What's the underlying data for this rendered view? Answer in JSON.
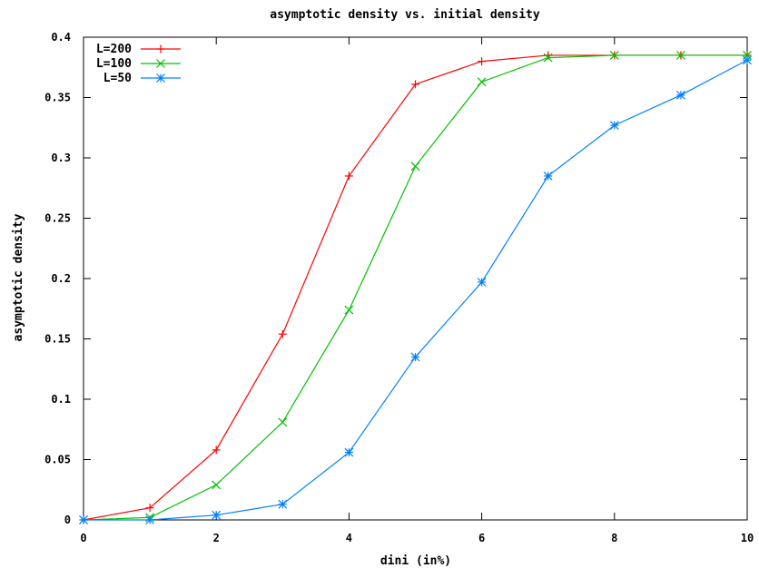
{
  "chart_data": {
    "type": "line",
    "title": "asymptotic density vs. initial density",
    "xlabel": "dini (in%)",
    "ylabel": "asymptotic density",
    "xlim": [
      0,
      10
    ],
    "ylim": [
      0,
      0.4
    ],
    "x_ticks": [
      {
        "value": 0,
        "label": "0"
      },
      {
        "value": 2,
        "label": "2"
      },
      {
        "value": 4,
        "label": "4"
      },
      {
        "value": 6,
        "label": "6"
      },
      {
        "value": 8,
        "label": "8"
      },
      {
        "value": 10,
        "label": "10"
      }
    ],
    "y_ticks": [
      {
        "value": 0,
        "label": "0"
      },
      {
        "value": 0.05,
        "label": "0.05"
      },
      {
        "value": 0.1,
        "label": "0.1"
      },
      {
        "value": 0.15,
        "label": "0.15"
      },
      {
        "value": 0.2,
        "label": "0.2"
      },
      {
        "value": 0.25,
        "label": "0.25"
      },
      {
        "value": 0.3,
        "label": "0.3"
      },
      {
        "value": 0.35,
        "label": "0.35"
      },
      {
        "value": 0.4,
        "label": "0.4"
      }
    ],
    "grid": false,
    "legend_position": "top-left",
    "x": [
      0,
      1,
      2,
      3,
      4,
      5,
      6,
      7,
      8,
      9,
      10
    ],
    "series": [
      {
        "name": "L=200",
        "color": "#ff0000",
        "marker": "plus",
        "values": [
          0,
          0.01,
          0.058,
          0.154,
          0.285,
          0.361,
          0.38,
          0.385,
          0.385,
          0.385,
          0.385
        ]
      },
      {
        "name": "L=100",
        "color": "#00c000",
        "marker": "cross",
        "values": [
          0,
          0.002,
          0.029,
          0.081,
          0.174,
          0.293,
          0.363,
          0.383,
          0.385,
          0.385,
          0.385
        ]
      },
      {
        "name": "L=50",
        "color": "#0080ff",
        "marker": "star",
        "values": [
          0,
          0,
          0.004,
          0.013,
          0.056,
          0.135,
          0.197,
          0.285,
          0.327,
          0.352,
          0.381
        ]
      }
    ]
  }
}
